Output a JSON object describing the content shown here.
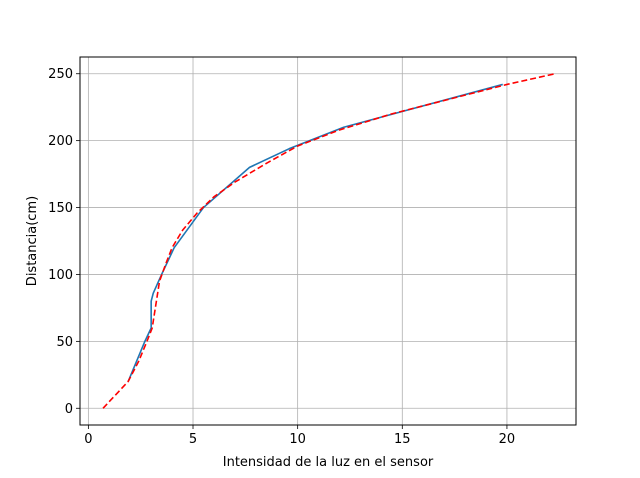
{
  "chart_data": {
    "type": "line",
    "title": "",
    "xlabel": "Intensidad de la luz en el sensor",
    "ylabel": "Distancia(cm)",
    "xlim": [
      -0.4,
      23.3
    ],
    "ylim": [
      -12.5,
      262.5
    ],
    "xticks": [
      0,
      5,
      10,
      15,
      20
    ],
    "yticks": [
      0,
      50,
      100,
      150,
      200,
      250
    ],
    "grid": true,
    "legend": "none",
    "series": [
      {
        "style": "solid",
        "color": "#1f77b4",
        "x": [
          1.9,
          2.7,
          3.0,
          3.0,
          3.1,
          3.5,
          4.1,
          5.5,
          7.7,
          9.6,
          12.2,
          19.8
        ],
        "y": [
          20,
          50,
          60,
          80,
          86,
          100,
          120,
          150,
          180,
          194,
          210,
          242
        ]
      },
      {
        "style": "dashed",
        "color": "#ff0000",
        "x": [
          0.7,
          1.3,
          1.9,
          2.4,
          2.8,
          3.05,
          3.2,
          3.4,
          3.7,
          4.0,
          4.5,
          5.2,
          6.0,
          7.0,
          8.5,
          10.0,
          12.0,
          14.5,
          17.0,
          20.0,
          22.3
        ],
        "y": [
          0,
          10,
          20,
          35,
          50,
          60,
          75,
          95,
          108,
          120,
          133,
          146,
          158,
          169,
          183,
          196,
          208,
          220,
          230,
          242,
          250
        ]
      }
    ]
  }
}
